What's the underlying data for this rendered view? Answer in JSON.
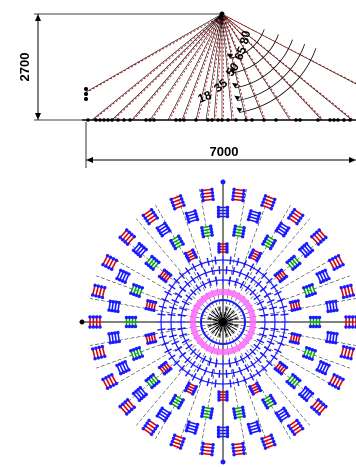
{
  "side_view": {
    "height_dimension": "2700",
    "width_dimension": "7000",
    "angle_labels": [
      "18",
      "35",
      "50",
      "65",
      "80"
    ]
  },
  "colors": {
    "line": "#000000",
    "dashed_ray": "#cc0000",
    "node_blue": "#1a1aff",
    "node_red": "#e00000",
    "node_green": "#00b000",
    "inner_pink": "#ff66ff",
    "center_black": "#000000"
  }
}
